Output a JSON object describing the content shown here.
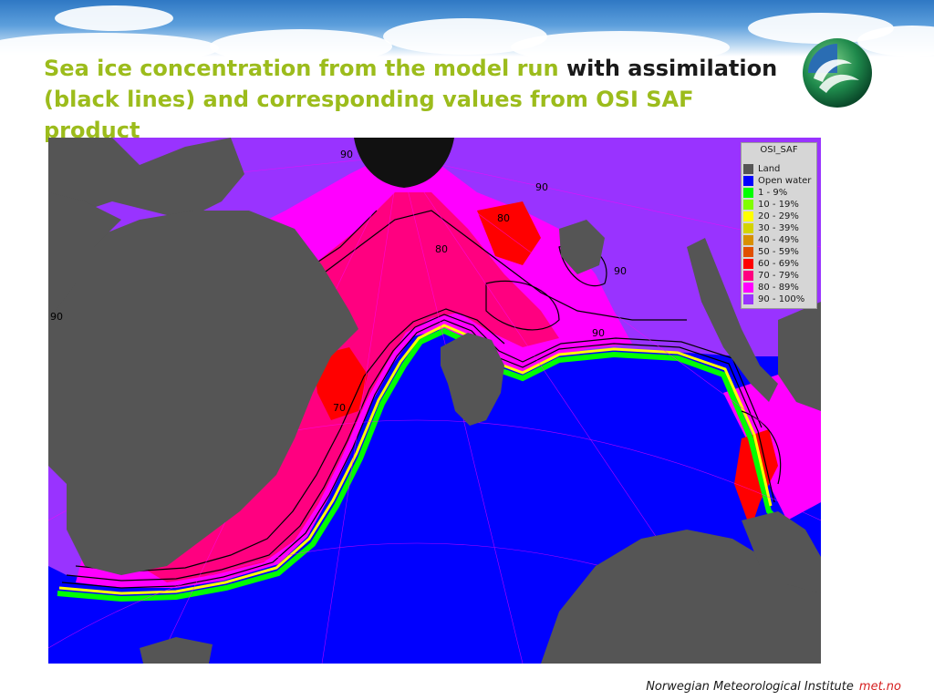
{
  "title": {
    "line1_part1": "Sea ice concentration from the model run",
    "line1_part2": "with assimilation",
    "line2": "(black lines) and corresponding values from OSI SAF product"
  },
  "legend": {
    "title": "OSI_SAF",
    "items": [
      {
        "label": "Land",
        "color": "#555555"
      },
      {
        "label": "Open water",
        "color": "#0000ff"
      },
      {
        "label": "1 - 9%",
        "color": "#00ff00"
      },
      {
        "label": "10 - 19%",
        "color": "#80ff00"
      },
      {
        "label": "20 - 29%",
        "color": "#ffff00"
      },
      {
        "label": "30 - 39%",
        "color": "#d4d400"
      },
      {
        "label": "40 - 49%",
        "color": "#d89000"
      },
      {
        "label": "50 - 59%",
        "color": "#e05000"
      },
      {
        "label": "60 - 69%",
        "color": "#ff0000"
      },
      {
        "label": "70 - 79%",
        "color": "#ff0080"
      },
      {
        "label": "80 - 89%",
        "color": "#ff00ff"
      },
      {
        "label": "90 - 100%",
        "color": "#9933ff"
      }
    ]
  },
  "contour_labels": [
    "90",
    "80",
    "90",
    "80",
    "90",
    "90",
    "70",
    "90"
  ],
  "colors": {
    "title_green": "#9cbc1c",
    "land": "#555555",
    "open_water": "#0000ff",
    "ice_90": "#9933ff",
    "ice_80": "#ff00ff",
    "ice_70": "#ff0080",
    "ice_60": "#ff0000"
  },
  "footer": {
    "institute": "Norwegian Meteorological Institute",
    "brand": "met.no"
  }
}
